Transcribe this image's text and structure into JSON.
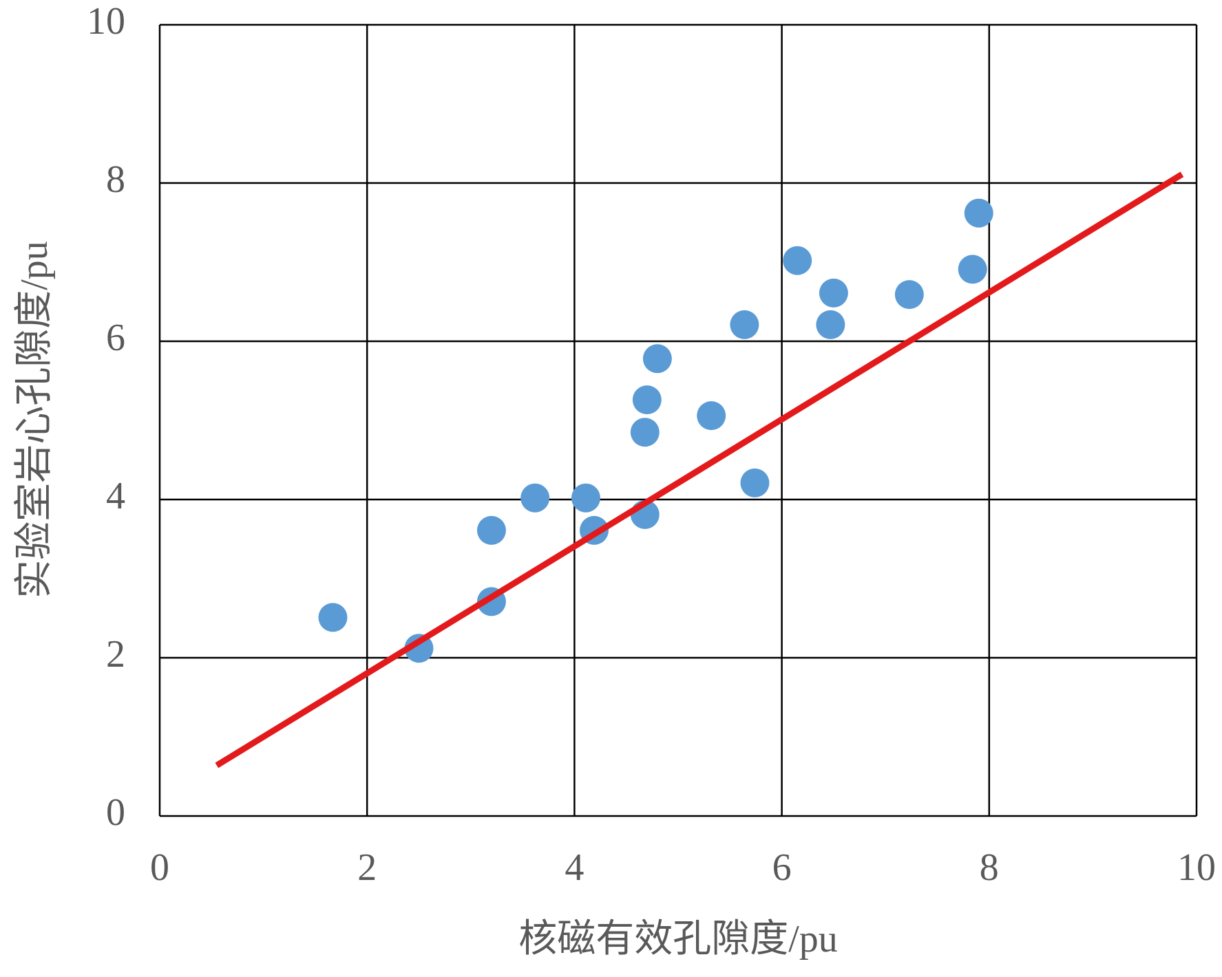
{
  "chart_data": {
    "type": "scatter",
    "x_label": "核磁有效孔隙度/pu",
    "y_label": "实验室岩心孔隙度/pu",
    "series": [
      {
        "color": "#5b9bd5",
        "x": [
          1.67,
          2.5,
          3.2,
          3.2,
          3.62,
          4.11,
          4.19,
          4.68,
          4.68,
          4.7,
          4.8,
          5.32,
          5.64,
          5.74,
          6.15,
          6.47,
          6.5,
          7.23,
          7.84,
          7.9
        ],
        "values": [
          2.51,
          2.12,
          2.71,
          3.61,
          4.02,
          4.02,
          3.61,
          3.81,
          4.85,
          5.26,
          5.78,
          5.06,
          6.21,
          4.21,
          7.02,
          6.21,
          6.61,
          6.59,
          6.91,
          7.62
        ]
      }
    ],
    "trendline": {
      "color": "#e31a1c",
      "x": [
        0.55,
        9.86
      ],
      "values": [
        0.64,
        8.11
      ]
    },
    "xlim": [
      0,
      10
    ],
    "xticks": [
      0,
      2,
      4,
      6,
      8,
      10
    ],
    "ylim": [
      0,
      10
    ],
    "yticks": [
      0,
      2,
      4,
      6,
      8,
      10
    ],
    "grid": true
  }
}
